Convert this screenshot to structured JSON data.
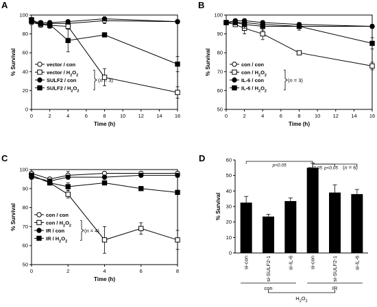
{
  "panels": [
    {
      "letter": "A",
      "type": "line",
      "ylabel": "% Survival",
      "xlabel": "Time (h)",
      "xlim": [
        0,
        16
      ],
      "ylim": [
        0,
        100
      ],
      "xticks": [
        0,
        2,
        4,
        6,
        8,
        10,
        12,
        14,
        16
      ],
      "yticks": [
        0,
        20,
        40,
        60,
        80,
        100
      ],
      "n_note": [
        "(",
        "n",
        " = 3)"
      ],
      "series": [
        {
          "name": [
            "vector / con",
            ""
          ],
          "marker": "open-circle",
          "x": [
            0,
            1,
            2,
            4,
            8,
            16
          ],
          "y": [
            92,
            90,
            91,
            91,
            94,
            93
          ],
          "err": [
            2,
            2,
            2,
            3,
            3,
            2
          ]
        },
        {
          "name": [
            "vector / H",
            "2",
            "O",
            "2"
          ],
          "marker": "open-square",
          "x": [
            0,
            1,
            2,
            4,
            8,
            16
          ],
          "y": [
            94,
            90,
            89,
            88,
            34,
            18
          ],
          "err": [
            2,
            3,
            3,
            3,
            9,
            6
          ]
        },
        {
          "name": [
            "SULF2 / con",
            ""
          ],
          "marker": "filled-circle",
          "x": [
            0,
            1,
            2,
            4,
            8,
            16
          ],
          "y": [
            93,
            92,
            92,
            93,
            96,
            93
          ],
          "err": [
            2,
            2,
            2,
            2,
            2,
            2
          ]
        },
        {
          "name": [
            "SULF2 / H",
            "2",
            "O",
            "2"
          ],
          "marker": "filled-square",
          "x": [
            0,
            1,
            2,
            4,
            8,
            16
          ],
          "y": [
            95,
            91,
            90,
            73,
            79,
            48
          ],
          "err": [
            2,
            2,
            3,
            12,
            2,
            8
          ]
        }
      ]
    },
    {
      "letter": "B",
      "type": "line",
      "ylabel": "% Survival",
      "xlabel": "Time (h)",
      "xlim": [
        0,
        16
      ],
      "ylim": [
        50,
        100
      ],
      "xticks": [
        0,
        2,
        4,
        6,
        8,
        10,
        12,
        14,
        16
      ],
      "yticks": [
        50,
        60,
        70,
        80,
        90,
        100
      ],
      "n_note": [
        "(",
        "n",
        " = 3)"
      ],
      "series": [
        {
          "name": [
            "con / con",
            ""
          ],
          "marker": "open-circle",
          "x": [
            0,
            1,
            2,
            4,
            8,
            16
          ],
          "y": [
            96,
            96,
            96,
            95,
            94,
            94
          ],
          "err": [
            1,
            1,
            1,
            1,
            1,
            1
          ]
        },
        {
          "name": [
            "con / H",
            "2",
            "O",
            "2"
          ],
          "marker": "open-square",
          "x": [
            0,
            1,
            2,
            4,
            8,
            16
          ],
          "y": [
            96,
            95,
            93,
            90,
            80,
            73
          ],
          "err": [
            1,
            1,
            3,
            3,
            1,
            2
          ]
        },
        {
          "name": [
            "IL-6 / con",
            ""
          ],
          "marker": "filled-circle",
          "x": [
            0,
            1,
            2,
            4,
            8,
            16
          ],
          "y": [
            96,
            97,
            97,
            96,
            95,
            94
          ],
          "err": [
            1,
            1,
            1,
            1,
            1,
            1
          ]
        },
        {
          "name": [
            "IL-6 / H",
            "2",
            "O",
            "2"
          ],
          "marker": "filled-square",
          "x": [
            0,
            1,
            2,
            4,
            8,
            16
          ],
          "y": [
            96,
            96,
            95,
            94,
            94,
            85
          ],
          "err": [
            1,
            1,
            2,
            2,
            2,
            3
          ]
        }
      ]
    },
    {
      "letter": "C",
      "type": "line",
      "ylabel": "% Survival",
      "xlabel": "Time (h)",
      "xlim": [
        0,
        8
      ],
      "ylim": [
        50,
        100
      ],
      "xticks": [
        0,
        2,
        4,
        6,
        8
      ],
      "yticks": [
        50,
        60,
        70,
        80,
        90,
        100
      ],
      "n_note": [
        "(",
        "n",
        " = 4)"
      ],
      "series": [
        {
          "name": [
            "con / con",
            ""
          ],
          "marker": "open-circle",
          "x": [
            0,
            1,
            2,
            4,
            6,
            8
          ],
          "y": [
            98,
            95,
            97,
            98,
            98,
            98
          ],
          "err": [
            1,
            1,
            2,
            1,
            1,
            1
          ]
        },
        {
          "name": [
            "con / H",
            "2",
            "O",
            "2"
          ],
          "marker": "open-square",
          "x": [
            0,
            1,
            2,
            4,
            6,
            8
          ],
          "y": [
            97,
            93,
            87,
            63,
            69,
            63
          ],
          "err": [
            1,
            1,
            2,
            7,
            3,
            5
          ]
        },
        {
          "name": [
            "IR / con",
            ""
          ],
          "marker": "filled-circle",
          "x": [
            0,
            1,
            2,
            4,
            6,
            8
          ],
          "y": [
            96,
            94,
            96,
            96,
            97,
            97
          ],
          "err": [
            1,
            1,
            1,
            1,
            1,
            1
          ]
        },
        {
          "name": [
            "IR / H",
            "2",
            "O",
            "2"
          ],
          "marker": "filled-square",
          "x": [
            0,
            1,
            2,
            4,
            6,
            8
          ],
          "y": [
            97,
            93,
            91,
            93,
            90,
            88
          ],
          "err": [
            1,
            1,
            2,
            1,
            1,
            1
          ]
        }
      ]
    }
  ],
  "bar_panel": {
    "letter": "D",
    "type": "bar",
    "ylabel": "% Survival",
    "ylim": [
      0,
      60
    ],
    "yticks": [
      0,
      10,
      20,
      30,
      40,
      50,
      60
    ],
    "categories": [
      "si-con",
      "si-SULF2-1",
      "si-IL-6",
      "si-con",
      "si-SULF2-1",
      "si-IL-6"
    ],
    "values": [
      32.5,
      23.5,
      33.5,
      55,
      39,
      38
    ],
    "errors": [
      4,
      1.5,
      2,
      3,
      5,
      3
    ],
    "groups": [
      {
        "label": "con",
        "bars": [
          0,
          1,
          2
        ]
      },
      {
        "label": "IR",
        "bars": [
          3,
          4,
          5
        ]
      }
    ],
    "treatment": [
      "H",
      "2",
      "O",
      "2"
    ],
    "significance": [
      {
        "label": "p<0.05",
        "from": 0,
        "to": 3
      },
      {
        "label": "p<0.05",
        "from": 3,
        "to": 4
      },
      {
        "label": "p<0.05",
        "from": 3,
        "to": 5
      }
    ],
    "n_note": [
      "(",
      "n",
      " = 6)"
    ]
  }
}
